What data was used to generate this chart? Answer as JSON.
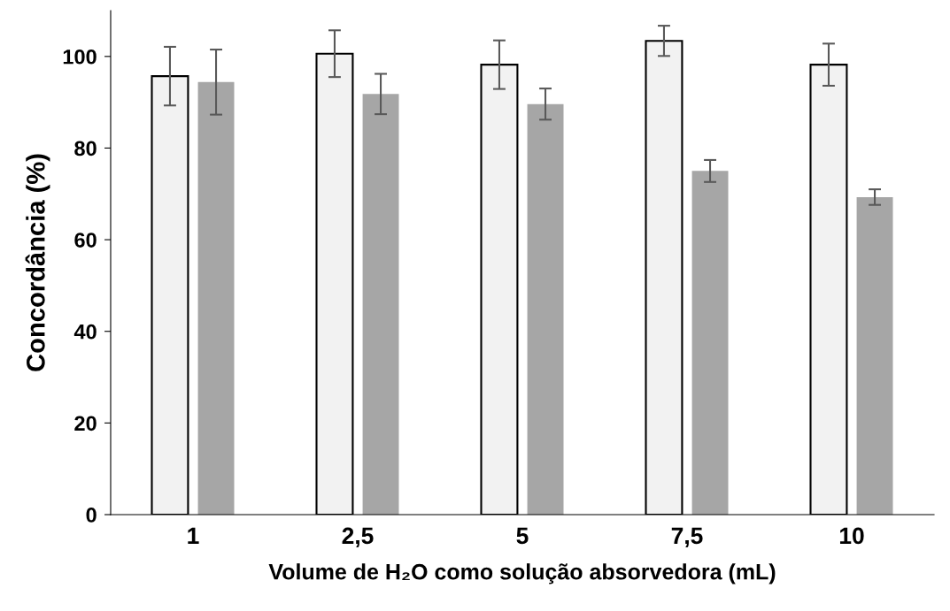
{
  "chart_data": {
    "type": "bar",
    "xlabel": "Volume de H₂O como solução absorvedora (mL)",
    "ylabel": "Concordância (%)",
    "categories": [
      "1",
      "2,5",
      "5",
      "7,5",
      "10"
    ],
    "series": [
      {
        "color": "#f2f2f2",
        "values": [
          95.7,
          100.6,
          98.2,
          103.4,
          98.2
        ],
        "errors": [
          6.4,
          5.1,
          5.3,
          3.3,
          4.6
        ]
      },
      {
        "color": "#a6a6a6",
        "values": [
          94.4,
          91.8,
          89.6,
          75.0,
          69.3
        ],
        "errors": [
          7.1,
          4.4,
          3.4,
          2.4,
          1.7
        ]
      }
    ],
    "ylim": [
      0,
      110
    ],
    "yticks": [
      0,
      20,
      40,
      60,
      80,
      100
    ],
    "grid": false,
    "legend": false
  }
}
